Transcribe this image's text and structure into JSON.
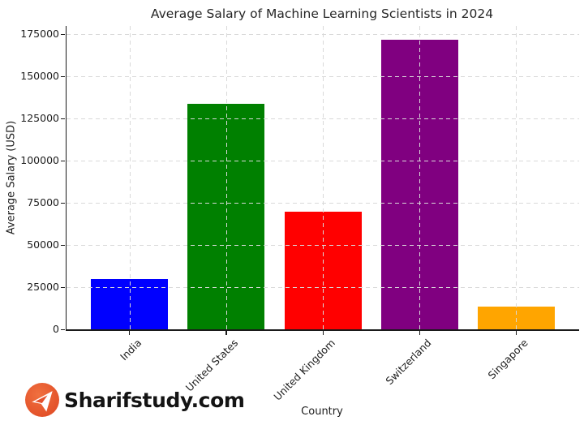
{
  "figure": {
    "background": "#ffffff"
  },
  "chart_data": {
    "type": "bar",
    "title": "Average Salary of Machine Learning Scientists in 2024",
    "xlabel": "Country",
    "ylabel": "Average Salary (USD)",
    "categories": [
      "India",
      "United States",
      "United Kingdom",
      "Switzerland",
      "Singapore"
    ],
    "values": [
      30000,
      134000,
      70000,
      172000,
      13500
    ],
    "bar_colors": [
      "#0000ff",
      "#008000",
      "#ff0000",
      "#800080",
      "#ffa500"
    ],
    "yticks": [
      0,
      25000,
      50000,
      75000,
      100000,
      125000,
      150000,
      175000
    ],
    "ylim": [
      0,
      180000
    ],
    "grid": {
      "style": "dashed",
      "color": "#d9d9d9",
      "axes": "both",
      "above_bars": true
    },
    "legend_position": "none"
  },
  "watermark": {
    "text": "Sharifstudy.com",
    "icon": "paper-plane-icon",
    "circle_color": "#e4502c",
    "circle_color_light": "#f0703f",
    "plane_color": "#ffffff",
    "text_color": "#141414"
  }
}
